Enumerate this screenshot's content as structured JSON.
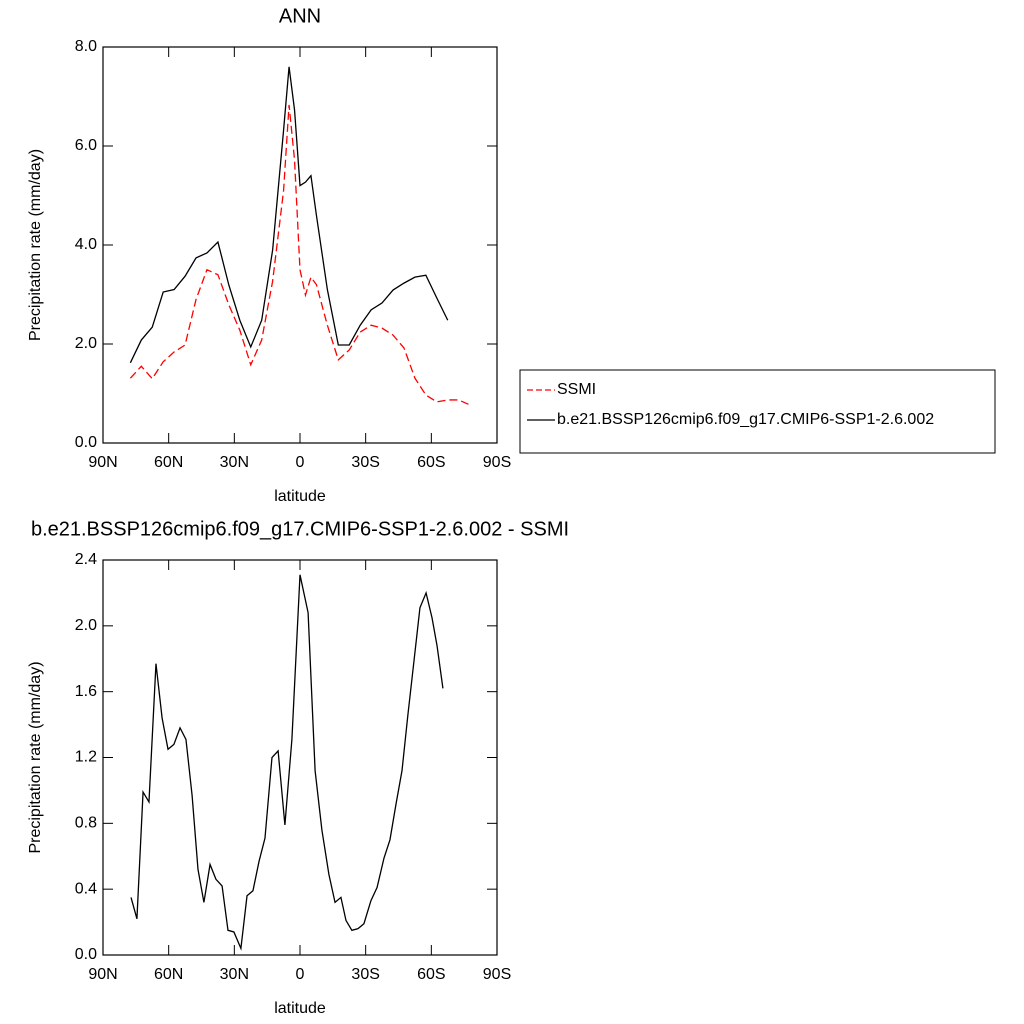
{
  "chart_data": [
    {
      "type": "line",
      "title": "ANN",
      "xlabel": "latitude",
      "ylabel": "Precipitation rate (mm/day)",
      "x": [
        77.5,
        72.5,
        67.5,
        62.5,
        57.5,
        52.5,
        47.5,
        42.5,
        37.5,
        32.5,
        27.5,
        22.5,
        17.5,
        12.5,
        7.5,
        5,
        2.5,
        0,
        -2.5,
        -5,
        -7.5,
        -12.5,
        -17.5,
        -22.5,
        -27.5,
        -32.5,
        -37.5,
        -42.5,
        -47.5,
        -52.5,
        -57.5,
        -62.5,
        -67.5,
        -72.5,
        -77.5
      ],
      "series": [
        {
          "name": "SSMI",
          "color": "#ff0000",
          "linestyle": "dashed",
          "values": [
            1.31,
            1.55,
            1.3,
            1.64,
            1.84,
            1.98,
            2.9,
            3.5,
            3.4,
            2.79,
            2.28,
            1.58,
            2.08,
            3.27,
            5.1,
            6.83,
            5.72,
            3.5,
            2.99,
            3.35,
            3.2,
            2.38,
            1.68,
            1.88,
            2.24,
            2.38,
            2.32,
            2.18,
            1.92,
            1.31,
            0.97,
            0.83,
            0.87,
            0.87,
            0.77
          ]
        },
        {
          "name": "b.e21.BSSP126cmip6.f09_g17.CMIP6-SSP1-2.6.002",
          "color": "#000000",
          "linestyle": "solid",
          "values": [
            1.62,
            2.08,
            2.34,
            3.05,
            3.1,
            3.37,
            3.74,
            3.84,
            4.06,
            3.19,
            2.48,
            1.94,
            2.48,
            3.9,
            6.32,
            7.6,
            6.73,
            5.2,
            5.27,
            5.4,
            4.6,
            3.1,
            1.98,
            1.98,
            2.38,
            2.69,
            2.83,
            3.09,
            3.23,
            3.35,
            3.39,
            2.93,
            2.48,
            null,
            null
          ]
        }
      ],
      "xlim": [
        90,
        -90
      ],
      "xticks": [
        {
          "value": 90,
          "label": "90N"
        },
        {
          "value": 60,
          "label": "60N"
        },
        {
          "value": 30,
          "label": "30N"
        },
        0,
        {
          "value": -30,
          "label": "30S"
        },
        {
          "value": -60,
          "label": "60S"
        },
        {
          "value": -90,
          "label": "90S"
        }
      ],
      "ylim": [
        0,
        8
      ],
      "yticks": [
        {
          "value": 0,
          "label": "0.0"
        },
        {
          "value": 2,
          "label": "2.0"
        },
        {
          "value": 4,
          "label": "4.0"
        },
        {
          "value": 6,
          "label": "6.0"
        },
        {
          "value": 8,
          "label": "8.0"
        }
      ],
      "legend": "right"
    },
    {
      "type": "line",
      "title": "b.e21.BSSP126cmip6.f09_g17.CMIP6-SSP1-2.6.002 - SSMI",
      "xlabel": "latitude",
      "ylabel": "Precipitation rate (mm/day)",
      "x": [
        77.2,
        74.5,
        71.7,
        69,
        65.8,
        63,
        60.3,
        57.6,
        54.8,
        52.1,
        49.3,
        46.6,
        43.9,
        41.1,
        38.4,
        35.6,
        32.9,
        30.2,
        27,
        24.2,
        21.5,
        18.7,
        16,
        12.8,
        10,
        6.9,
        3.7,
        0,
        -3.7,
        -6.9,
        -10,
        -13.2,
        -16,
        -18.7,
        -21,
        -23.7,
        -26.5,
        -29.2,
        -32.4,
        -35.2,
        -38.4,
        -41.1,
        -43.9,
        -46.6,
        -49.3,
        -52.1,
        -54.8,
        -57.6,
        -60.3,
        -62.6,
        -65.3
      ],
      "series": [
        {
          "color": "#000000",
          "linestyle": "solid",
          "values": [
            0.35,
            0.22,
            0.99,
            0.93,
            1.77,
            1.44,
            1.25,
            1.28,
            1.38,
            1.31,
            0.97,
            0.52,
            0.32,
            0.55,
            0.46,
            0.42,
            0.15,
            0.14,
            0.04,
            0.36,
            0.39,
            0.57,
            0.71,
            1.2,
            1.24,
            0.79,
            1.31,
            2.31,
            2.08,
            1.12,
            0.76,
            0.49,
            0.32,
            0.35,
            0.21,
            0.15,
            0.16,
            0.19,
            0.33,
            0.41,
            0.59,
            0.7,
            0.92,
            1.12,
            1.46,
            1.79,
            2.11,
            2.2,
            2.05,
            1.88,
            1.62
          ]
        }
      ],
      "xlim": [
        90,
        -90
      ],
      "xticks": [
        {
          "value": 90,
          "label": "90N"
        },
        {
          "value": 60,
          "label": "60N"
        },
        {
          "value": 30,
          "label": "30N"
        },
        0,
        {
          "value": -30,
          "label": "30S"
        },
        {
          "value": -60,
          "label": "60S"
        },
        {
          "value": -90,
          "label": "90S"
        }
      ],
      "ylim": [
        0,
        2.4
      ],
      "yticks": [
        {
          "value": 0,
          "label": "0.0"
        },
        {
          "value": 0.4,
          "label": "0.4"
        },
        {
          "value": 0.8,
          "label": "0.8"
        },
        {
          "value": 1.2,
          "label": "1.2"
        },
        {
          "value": 1.6,
          "label": "1.6"
        },
        {
          "value": 2,
          "label": "2.0"
        },
        {
          "value": 2.4,
          "label": "2.4"
        }
      ]
    }
  ]
}
